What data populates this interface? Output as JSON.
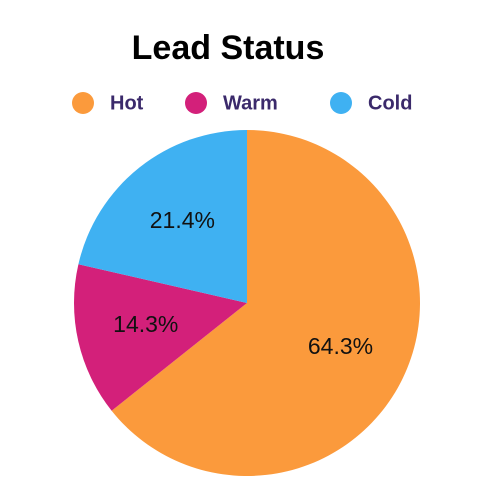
{
  "chart_data": {
    "type": "pie",
    "title": "Lead Status",
    "categories": [
      "Hot",
      "Warm",
      "Cold"
    ],
    "values": [
      64.3,
      14.3,
      21.4
    ],
    "value_labels": [
      "64.3%",
      "14.3%",
      "21.4%"
    ],
    "colors": [
      "#fb9a3c",
      "#d3207a",
      "#3fb1f2"
    ],
    "legend": "top"
  }
}
